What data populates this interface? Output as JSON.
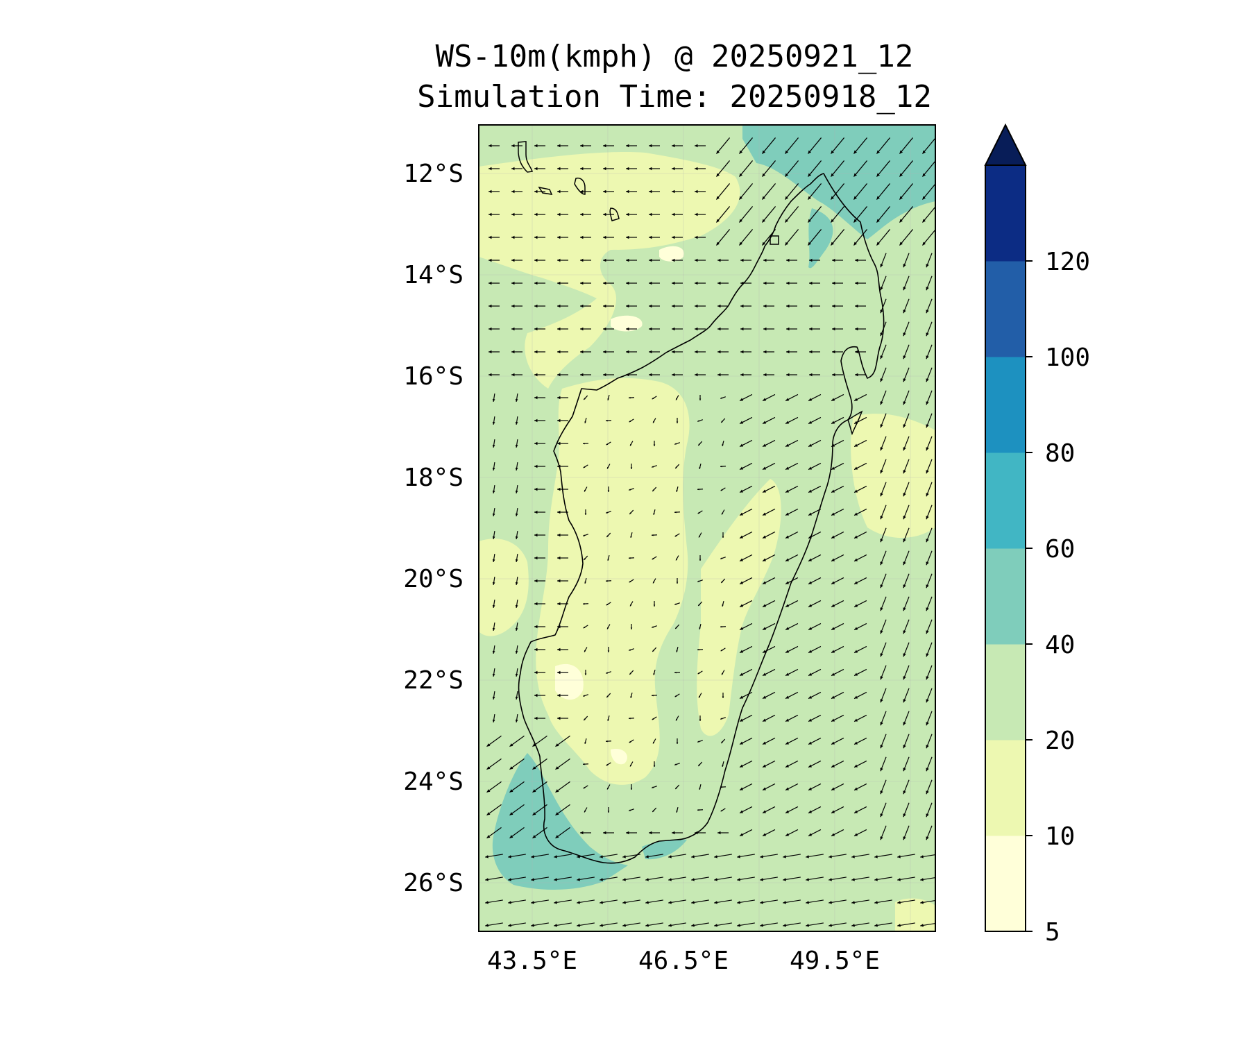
{
  "title": "WS-10m(kmph) @ 20250921_12",
  "subtitle": "Simulation Time: 20250918_12",
  "map": {
    "lon_range": [
      42.4,
      51.4
    ],
    "lat_range": [
      -27.0,
      -11.1
    ],
    "lat_ticks": [
      "12°S",
      "14°S",
      "16°S",
      "18°S",
      "20°S",
      "22°S",
      "24°S",
      "26°S"
    ],
    "lon_ticks": [
      "43.5°E",
      "46.5°E",
      "49.5°E"
    ],
    "gridlines": true
  },
  "colorbar": {
    "levels": [
      "5",
      "10",
      "20",
      "40",
      "60",
      "80",
      "100",
      "120"
    ],
    "colors": [
      "#ffffd9",
      "#edf8b1",
      "#c7e9b4",
      "#7fcdbb",
      "#41b6c4",
      "#1d91c0",
      "#225ea8",
      "#0c2c84"
    ],
    "extend_color": "#081d58",
    "extend": "max"
  },
  "colors": {
    "base_fill": "#c7e9b4",
    "coast": "#000000",
    "arrows": "#000000"
  }
}
